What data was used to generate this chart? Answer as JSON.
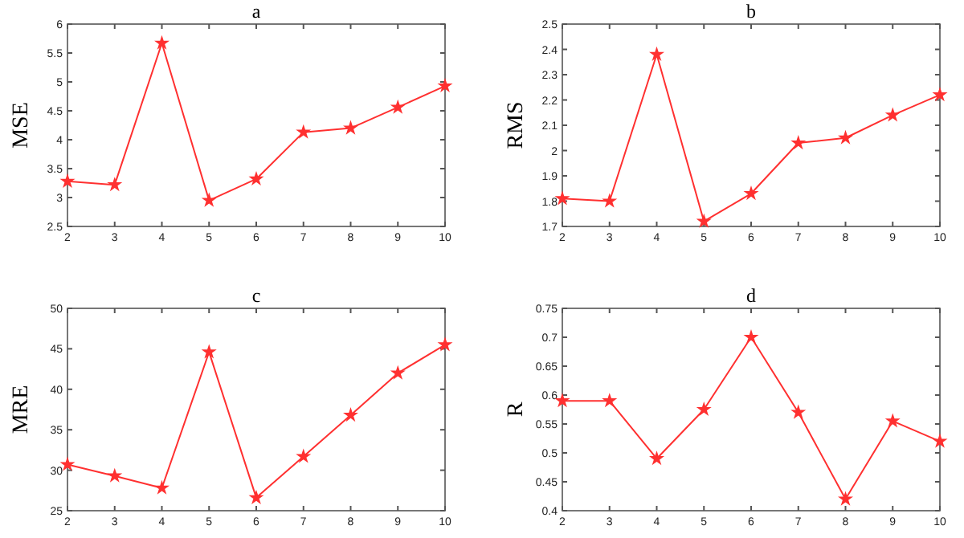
{
  "chart_data": [
    {
      "type": "line",
      "title": "a",
      "ylabel": "MSE",
      "x": [
        2,
        3,
        4,
        5,
        6,
        7,
        8,
        9,
        10
      ],
      "series": [
        {
          "color": "#ff3030",
          "values": [
            3.28,
            3.22,
            5.67,
            2.95,
            3.32,
            4.13,
            4.2,
            4.56,
            4.93
          ]
        }
      ],
      "xlim": [
        2,
        10
      ],
      "xticks": [
        2,
        3,
        4,
        5,
        6,
        7,
        8,
        9,
        10
      ],
      "ylim": [
        2.5,
        6
      ],
      "yticks": [
        2.5,
        3,
        3.5,
        4,
        4.5,
        5,
        5.5,
        6
      ],
      "marker": "star",
      "grid": false
    },
    {
      "type": "line",
      "title": "b",
      "ylabel": "RMS",
      "x": [
        2,
        3,
        4,
        5,
        6,
        7,
        8,
        9,
        10
      ],
      "series": [
        {
          "color": "#ff3030",
          "values": [
            1.81,
            1.8,
            2.38,
            1.72,
            1.83,
            2.03,
            2.05,
            2.14,
            2.22
          ]
        }
      ],
      "xlim": [
        2,
        10
      ],
      "xticks": [
        2,
        3,
        4,
        5,
        6,
        7,
        8,
        9,
        10
      ],
      "ylim": [
        1.7,
        2.5
      ],
      "yticks": [
        1.7,
        1.8,
        1.9,
        2,
        2.1,
        2.2,
        2.3,
        2.4,
        2.5
      ],
      "marker": "star",
      "grid": false
    },
    {
      "type": "line",
      "title": "c",
      "ylabel": "MRE",
      "x": [
        2,
        3,
        4,
        5,
        6,
        7,
        8,
        9,
        10
      ],
      "series": [
        {
          "color": "#ff3030",
          "values": [
            30.7,
            29.3,
            27.8,
            44.6,
            26.6,
            31.7,
            36.8,
            42.0,
            45.5
          ]
        }
      ],
      "xlim": [
        2,
        10
      ],
      "xticks": [
        2,
        3,
        4,
        5,
        6,
        7,
        8,
        9,
        10
      ],
      "ylim": [
        25,
        50
      ],
      "yticks": [
        25,
        30,
        35,
        40,
        45,
        50
      ],
      "marker": "star",
      "grid": false
    },
    {
      "type": "line",
      "title": "d",
      "ylabel": "R",
      "x": [
        2,
        3,
        4,
        5,
        6,
        7,
        8,
        9,
        10
      ],
      "series": [
        {
          "color": "#ff3030",
          "values": [
            0.59,
            0.59,
            0.49,
            0.575,
            0.7,
            0.57,
            0.42,
            0.555,
            0.52
          ]
        }
      ],
      "xlim": [
        2,
        10
      ],
      "xticks": [
        2,
        3,
        4,
        5,
        6,
        7,
        8,
        9,
        10
      ],
      "ylim": [
        0.4,
        0.75
      ],
      "yticks": [
        0.4,
        0.45,
        0.5,
        0.55,
        0.6,
        0.65,
        0.7,
        0.75
      ],
      "marker": "star",
      "grid": false
    }
  ]
}
